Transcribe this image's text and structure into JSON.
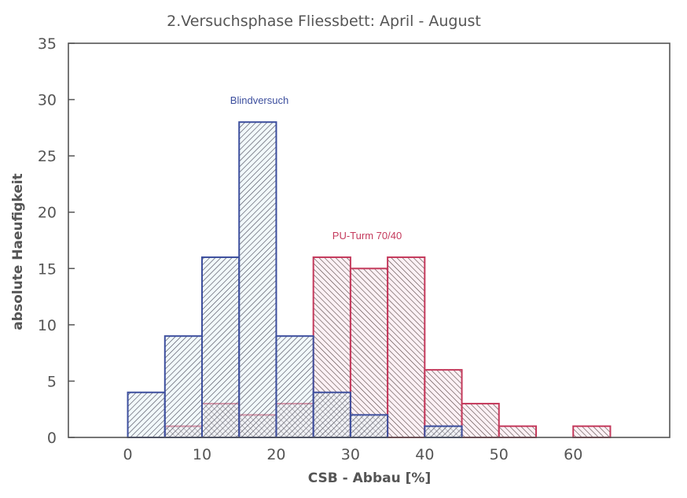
{
  "chart_data": {
    "type": "bar",
    "subtype": "overlapping histogram",
    "title": "2.Versuchsphase Fliessbett: April - August",
    "xlabel": "CSB - Abbau [%]",
    "ylabel": "absolute Haeufigkeit",
    "xlim": [
      -8,
      73
    ],
    "ylim": [
      0,
      35
    ],
    "xticks": [
      0,
      10,
      20,
      30,
      40,
      50,
      60
    ],
    "yticks": [
      0,
      5,
      10,
      15,
      20,
      25,
      30,
      35
    ],
    "grid": false,
    "bin_width": 5,
    "bin_starts": [
      0,
      5,
      10,
      15,
      20,
      25,
      30,
      35,
      40,
      45,
      50,
      55,
      60
    ],
    "series": [
      {
        "name": "Blindversuch",
        "color": "#3d4f9e",
        "values": [
          4,
          9,
          16,
          28,
          9,
          4,
          2,
          0,
          1,
          0,
          0,
          0,
          0
        ]
      },
      {
        "name": "PU-Turm 70/40",
        "color": "#c43a5c",
        "values": [
          0,
          1,
          3,
          2,
          3,
          16,
          15,
          16,
          6,
          3,
          1,
          0,
          1
        ]
      }
    ]
  }
}
